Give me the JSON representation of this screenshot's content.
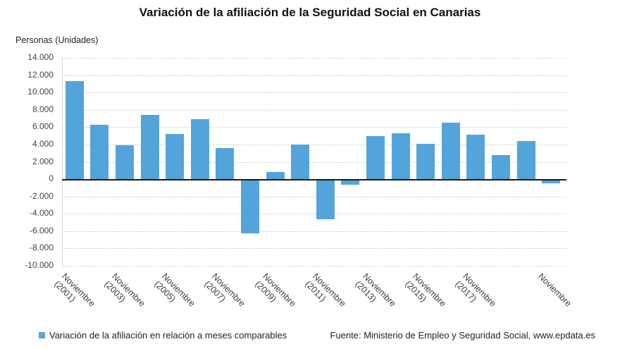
{
  "chart_data": {
    "type": "bar",
    "title": "Variación de la afiliación de la Seguridad Social en Canarias",
    "y_axis_note": "Personas (Unidades)",
    "ylim": [
      -10000,
      14000
    ],
    "ytick_step": 2000,
    "grid": "horizontal dotted",
    "legend_label": "Variación de la afiliación en relación a meses comparables",
    "bar_color": "#54a4dc",
    "bars": [
      {
        "tick": "Noviembre (2001)",
        "value": 11300
      },
      {
        "tick": "",
        "value": 6300
      },
      {
        "tick": "Noviembre (2003)",
        "value": 3900
      },
      {
        "tick": "",
        "value": 7400
      },
      {
        "tick": "Noviembre (2005)",
        "value": 5200
      },
      {
        "tick": "",
        "value": 6900
      },
      {
        "tick": "Noviembre (2007)",
        "value": 3600
      },
      {
        "tick": "",
        "value": -6100
      },
      {
        "tick": "Noviembre (2009)",
        "value": 800
      },
      {
        "tick": "",
        "value": 4000
      },
      {
        "tick": "Noviembre (2011)",
        "value": -4500
      },
      {
        "tick": "",
        "value": -500
      },
      {
        "tick": "Noviembre (2013)",
        "value": 5000
      },
      {
        "tick": "",
        "value": 5300
      },
      {
        "tick": "Noviembre (2015)",
        "value": 4100
      },
      {
        "tick": "",
        "value": 6500
      },
      {
        "tick": "Noviembre (2017)",
        "value": 5100
      },
      {
        "tick": "",
        "value": 2800
      },
      {
        "tick": "",
        "value": 4400
      },
      {
        "tick": "Noviembre",
        "value": -300
      }
    ]
  },
  "footer": {
    "source": "Fuente: Ministerio de Empleo y Seguridad Social, www.epdata.es"
  }
}
